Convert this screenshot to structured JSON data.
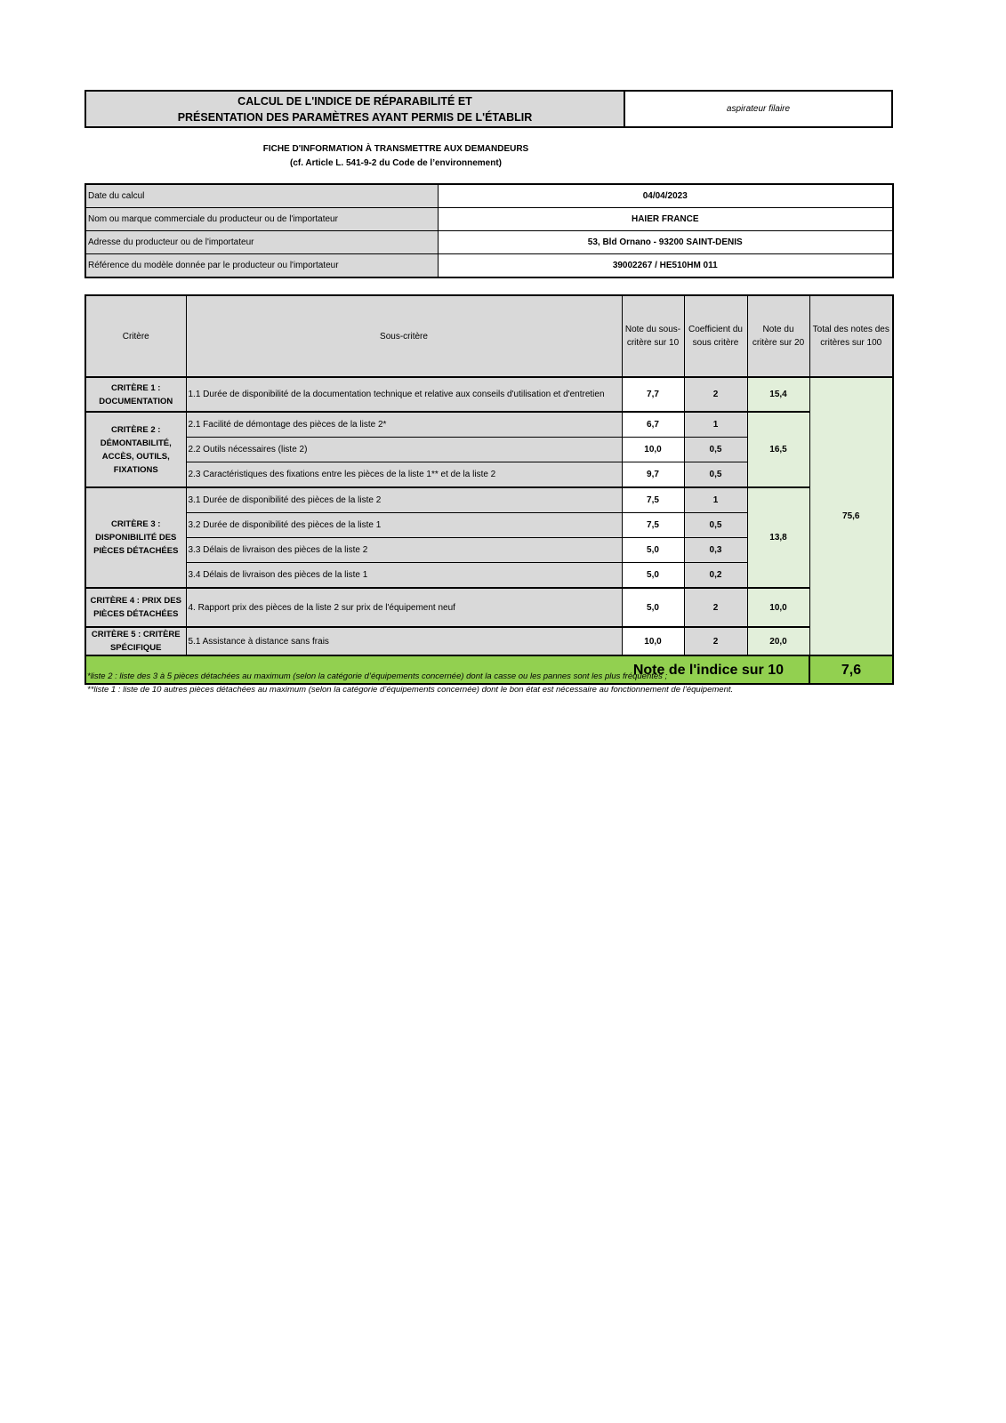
{
  "header": {
    "title_line1": "CALCUL DE L'INDICE DE RÉPARABILITÉ ET",
    "title_line2": "PRÉSENTATION DES PARAMÈTRES AYANT PERMIS DE L'ÉTABLIR",
    "product": "aspirateur filaire"
  },
  "subtitle": {
    "line1": "FICHE D'INFORMATION À TRANSMETTRE AUX DEMANDEURS",
    "line2": "(cf. Article L. 541-9-2 du Code de l’environnement)"
  },
  "info": [
    {
      "label": "Date du calcul",
      "value": "04/04/2023"
    },
    {
      "label": "Nom ou marque commerciale du producteur ou de l'importateur",
      "value": "HAIER FRANCE"
    },
    {
      "label": "Adresse du producteur ou de l'importateur",
      "value": "53, Bld Ornano - 93200 SAINT-DENIS"
    },
    {
      "label": "Référence du modèle donnée par le producteur ou l'importateur",
      "value": "39002267 / HE510HM 011"
    }
  ],
  "table": {
    "headers": [
      "Critère",
      "Sous-critère",
      "Note du sous-critère sur 10",
      "Coefficient du sous critère",
      "Note du critère sur 20",
      "Total des notes des critères sur 100"
    ],
    "criteria": [
      {
        "name": "CRITÈRE 1 : DOCUMENTATION",
        "score": "15,4",
        "subs": [
          {
            "label": "1.1 Durée de disponibilité de la documentation technique et relative aux conseils d'utilisation et d'entretien",
            "note": "7,7",
            "coef": "2"
          }
        ]
      },
      {
        "name": "CRITÈRE 2 : DÉMONTABILITÉ, ACCÈS, OUTILS, FIXATIONS",
        "score": "16,5",
        "subs": [
          {
            "label": "2.1 Facilité de démontage des pièces de la liste 2*",
            "note": "6,7",
            "coef": "1"
          },
          {
            "label": "2.2 Outils nécessaires (liste 2)",
            "note": "10,0",
            "coef": "0,5"
          },
          {
            "label": "2.3 Caractéristiques des fixations entre les pièces de la liste 1** et de la liste 2",
            "note": "9,7",
            "coef": "0,5"
          }
        ]
      },
      {
        "name": "CRITÈRE 3 : DISPONIBILITÉ DES PIÈCES DÉTACHÉES",
        "score": "13,8",
        "subs": [
          {
            "label": "3.1 Durée de disponibilité des pièces de la liste 2",
            "note": "7,5",
            "coef": "1"
          },
          {
            "label": "3.2 Durée de disponibilité des pièces de la liste 1",
            "note": "7,5",
            "coef": "0,5"
          },
          {
            "label": "3.3 Délais de livraison des pièces de la liste 2",
            "note": "5,0",
            "coef": "0,3"
          },
          {
            "label": "3.4 Délais de livraison des pièces de la liste 1",
            "note": "5,0",
            "coef": "0,2"
          }
        ]
      },
      {
        "name": "CRITÈRE 4 : PRIX DES PIÈCES DÉTACHÉES",
        "score": "10,0",
        "subs": [
          {
            "label": "4. Rapport prix des pièces de la liste 2 sur prix de l'équipement neuf",
            "note": "5,0",
            "coef": "2"
          }
        ]
      },
      {
        "name": "CRITÈRE 5 : CRITÈRE SPÉCIFIQUE",
        "score": "20,0",
        "subs": [
          {
            "label": "5.1 Assistance à distance sans frais",
            "note": "10,0",
            "coef": "2"
          }
        ]
      }
    ],
    "total_100": "75,6",
    "index_label": "Note de l'indice sur 10",
    "index_value": "7,6"
  },
  "notes": [
    "*liste 2 : liste des 3 à 5 pièces détachées au maximum (selon la catégorie d’équipements concernée) dont la casse ou les pannes sont les plus fréquentes ;",
    "**liste 1 : liste de 10 autres pièces détachées au maximum (selon la catégorie d’équipements concernée) dont le bon état est nécessaire au fonctionnement de l’équipement."
  ],
  "colors": {
    "header_gray": "#d9d9d9",
    "score_green": "#e2efda",
    "index_green": "#92d050"
  }
}
